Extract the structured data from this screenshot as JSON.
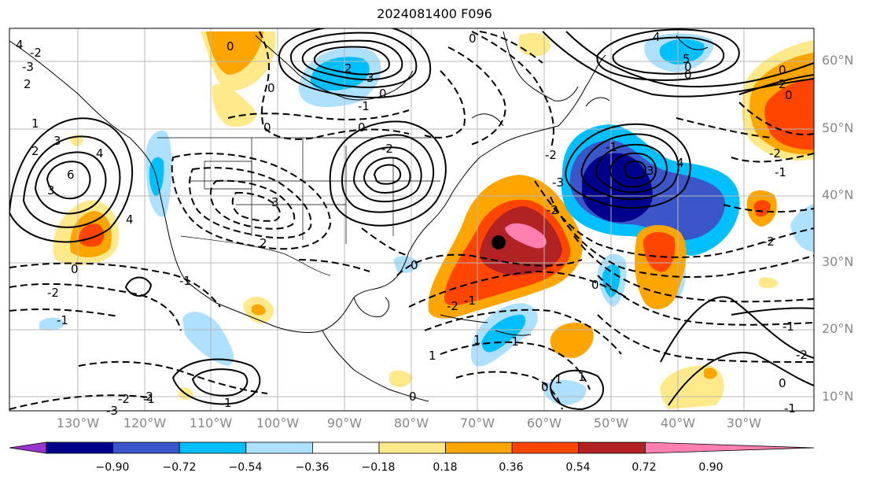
{
  "title": "2024081400 F096",
  "lat_labels": [
    "60°N",
    "50°N",
    "40°N",
    "30°N",
    "20°N",
    "10°N"
  ],
  "lon_labels": [
    "130°W",
    "120°W",
    "110°W",
    "100°W",
    "90°W",
    "80°W",
    "70°W",
    "60°W",
    "50°W",
    "40°W",
    "30°W"
  ],
  "colorbar": {
    "ticks": [
      "−0.90",
      "−0.72",
      "−0.54",
      "−0.36",
      "−0.18",
      "0.18",
      "0.36",
      "0.54",
      "0.72",
      "0.90"
    ],
    "colors": [
      "#9a34cc",
      "#00008c",
      "#3a56c8",
      "#00bfff",
      "#aee0ff",
      "#ffffff",
      "#ffe98a",
      "#ffa500",
      "#ff4500",
      "#b22222",
      "#ff80b0"
    ]
  },
  "contour_labels": [
    "0",
    "-2",
    "-3",
    "4",
    "2",
    "3",
    "-2",
    "1",
    "4",
    "2",
    "0",
    "-1",
    "3",
    "6",
    "4",
    "3",
    "2",
    "0",
    "0",
    "-1",
    "-3",
    "-2",
    "-1",
    "1",
    "-2",
    "-1",
    "0",
    "-2",
    "0",
    "-1",
    "-2",
    "1",
    "0",
    "-1",
    "1",
    "0",
    "-1",
    "3",
    "2",
    "0",
    "0",
    "1",
    "0",
    "-2",
    "-3",
    "-2",
    "-1",
    "3",
    "4",
    "5",
    "4",
    "0",
    "0",
    "0",
    "0",
    "2",
    "-2",
    "-1",
    "-2",
    "-1",
    "-2",
    "0",
    "-1"
  ],
  "marker": "forecast-point"
}
